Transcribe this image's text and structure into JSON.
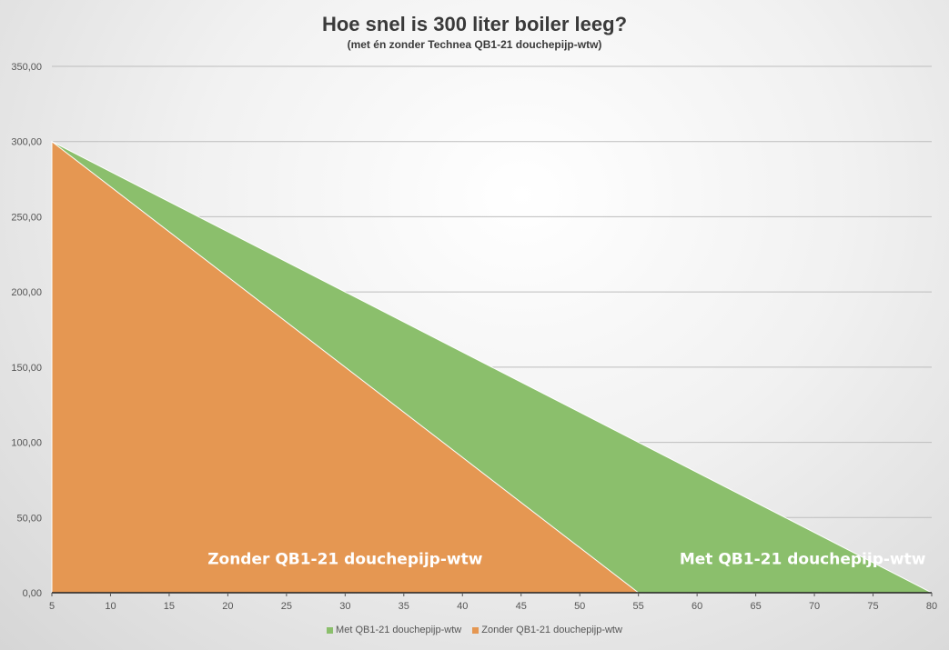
{
  "chart_data": {
    "type": "area",
    "title": "Hoe snel is 300 liter boiler leeg?",
    "subtitle": "(met én zonder Technea QB1-21 douchepijp-wtw)",
    "xlabel": "",
    "ylabel": "",
    "x_ticks": [
      "5",
      "10",
      "15",
      "20",
      "25",
      "30",
      "35",
      "40",
      "45",
      "50",
      "55",
      "60",
      "65",
      "70",
      "75",
      "80"
    ],
    "y_ticks": [
      "0,00",
      "50,00",
      "100,00",
      "150,00",
      "200,00",
      "250,00",
      "300,00",
      "350,00"
    ],
    "xlim": [
      5,
      80
    ],
    "ylim": [
      0,
      350
    ],
    "grid": "horizontal",
    "legend_position": "bottom",
    "series": [
      {
        "name": "Met QB1-21 douchepijp-wtw",
        "color": "#8bbf6c",
        "points": [
          [
            5,
            300
          ],
          [
            80,
            0
          ]
        ],
        "label": "Met QB1-21 douchepijp-wtw",
        "label_at": [
          69,
          19
        ]
      },
      {
        "name": "Zonder QB1-21 douchepijp-wtw",
        "color": "#e59752",
        "points": [
          [
            5,
            300
          ],
          [
            55,
            0
          ]
        ],
        "label": "Zonder QB1-21 douchepijp-wtw",
        "label_at": [
          30,
          19
        ]
      }
    ]
  }
}
